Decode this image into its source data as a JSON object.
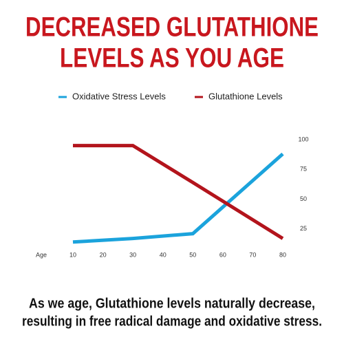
{
  "chart_data": {
    "type": "line",
    "title": [
      "DECREASED GLUTATHIONE",
      "LEVELS AS YOU AGE"
    ],
    "x_label": "Age",
    "x": [
      10,
      30,
      50,
      80
    ],
    "xlim": [
      10,
      80
    ],
    "xticks": [
      10,
      20,
      30,
      40,
      50,
      60,
      70,
      80
    ],
    "ylim": [
      0,
      100
    ],
    "yticks": [
      25,
      50,
      75,
      100
    ],
    "grid": false,
    "series": [
      {
        "name": "Oxidative Stress Levels",
        "color": "#1ba3dc",
        "values": [
          14,
          17,
          21,
          88
        ]
      },
      {
        "name": "Glutathione Levels",
        "color": "#b3141c",
        "values": [
          95,
          95,
          64,
          17
        ]
      }
    ],
    "caption": [
      "As we age, Glutathione levels naturally decrease,",
      "resulting in free radical damage and oxidative stress."
    ]
  }
}
